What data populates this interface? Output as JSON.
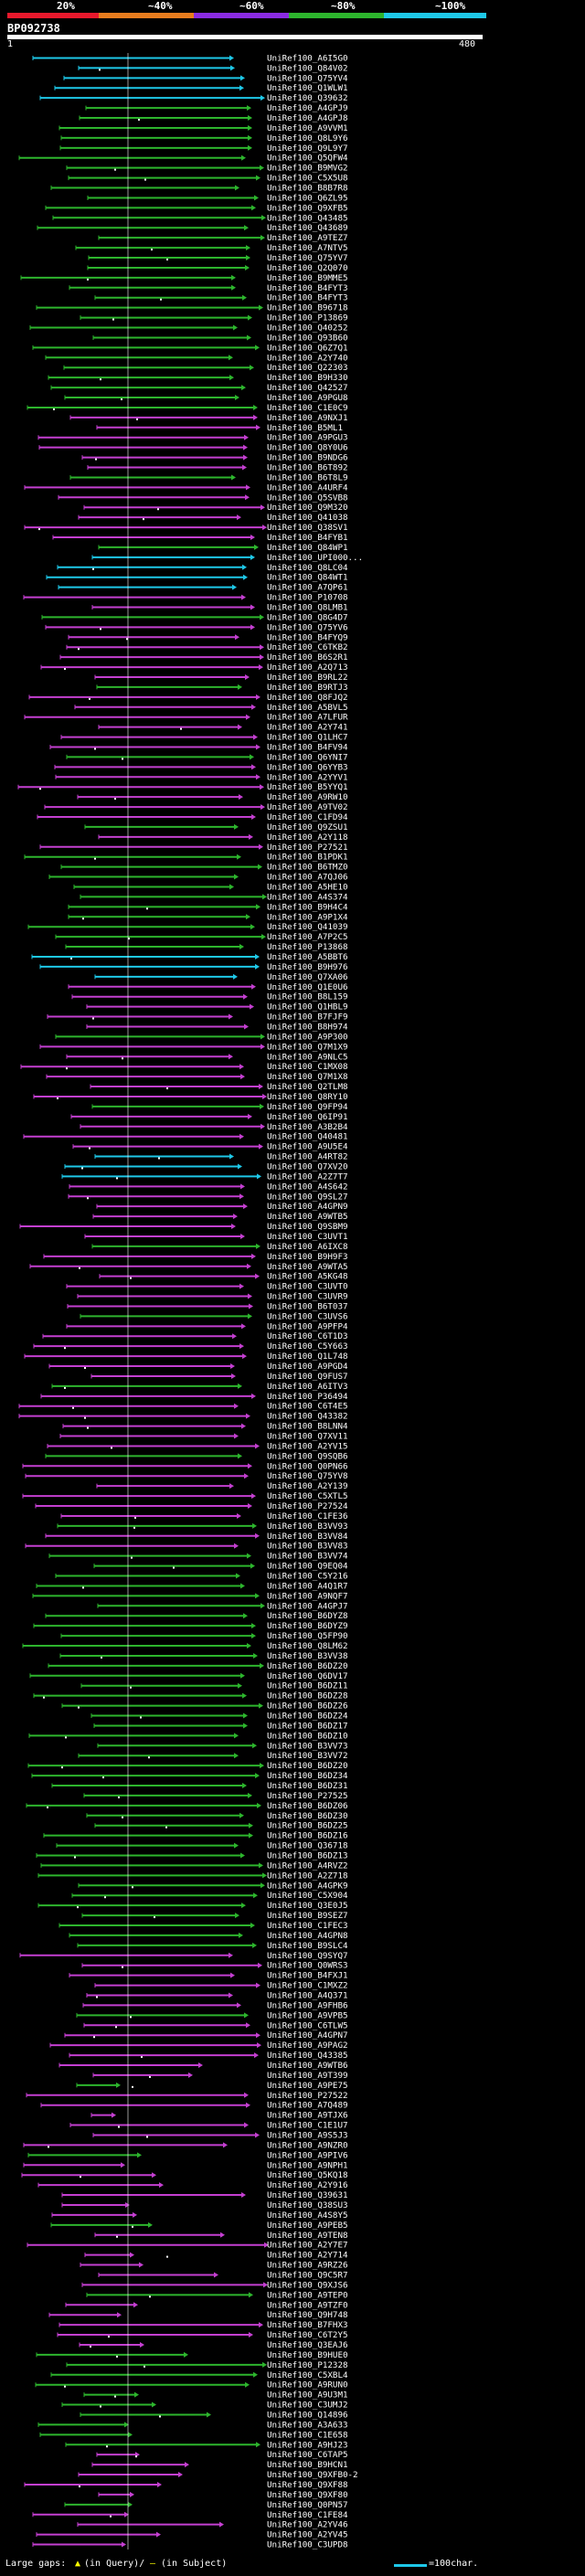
{
  "header": {
    "query_id": "BP092738",
    "ruler_labels": [
      "20%",
      "~40%",
      "~60%",
      "~80%",
      "~100%"
    ],
    "query_start": "1",
    "query_end": "480",
    "colors": [
      "#e8192c",
      "#e87d1e",
      "#8a2be2",
      "#2db52d",
      "#1ec8e8"
    ]
  },
  "legend": {
    "left_text": "Large gaps:",
    "mid_text": "(in Query)/",
    "right_text": "(in Subject)",
    "scale_text": "=100char."
  },
  "hits": [
    "UniRef100_A6I5G0",
    "UniRef100_Q84V02",
    "UniRef100_Q75YV4",
    "UniRef100_Q1WLW1",
    "UniRef100_Q39632",
    "UniRef100_A4GPJ9",
    "UniRef100_A4GPJ8",
    "UniRef100_A9VVM1",
    "UniRef100_Q8L9Y6",
    "UniRef100_Q9L9Y7",
    "UniRef100_Q5QFW4",
    "UniRef100_B9MVG2",
    "UniRef100_C5X5U8",
    "UniRef100_B8B7R8",
    "UniRef100_Q6ZL95",
    "UniRef100_Q9XFB5",
    "UniRef100_Q43485",
    "UniRef100_Q43689",
    "UniRef100_A9TEZ7",
    "UniRef100_A7NTV5",
    "UniRef100_Q75YV7",
    "UniRef100_Q2Q070",
    "UniRef100_B9MME5",
    "UniRef100_B4FYT3",
    "UniRef100_B4FYT3",
    "UniRef100_B96718",
    "UniRef100_P13869",
    "UniRef100_Q40252",
    "UniRef100_Q93B60",
    "UniRef100_Q6Z7Q1",
    "UniRef100_A2Y740",
    "UniRef100_Q22303",
    "UniRef100_B9H330",
    "UniRef100_Q42527",
    "UniRef100_A9PGU8",
    "UniRef100_C1E0C9",
    "UniRef100_A9NXJ1",
    "UniRef100_B5ML1",
    "UniRef100_A9PGU3",
    "UniRef100_Q8Y0U6",
    "UniRef100_B9NDG6",
    "UniRef100_B6T892",
    "UniRef100_B6T8L9",
    "UniRef100_A4URF4",
    "UniRef100_Q5SVB8",
    "UniRef100_Q9M320",
    "UniRef100_Q41038",
    "UniRef100_Q38SV1",
    "UniRef100_B4FYB1",
    "UniRef100_Q84WP1",
    "UniRef100_UPI000...",
    "UniRef100_Q8LC04",
    "UniRef100_Q84WT1",
    "UniRef100_A7QP61",
    "UniRef100_P10708",
    "UniRef100_Q8LMB1",
    "UniRef100_Q8G4D7",
    "UniRef100_Q75YV6",
    "UniRef100_B4FYQ9",
    "UniRef100_C6TKB2",
    "UniRef100_B6S2R1",
    "UniRef100_A2Q713",
    "UniRef100_B9RL22",
    "UniRef100_B9RTJ3",
    "UniRef100_Q8FJQ2",
    "UniRef100_A5BVL5",
    "UniRef100_A7LFUR",
    "UniRef100_A2Y741",
    "UniRef100_Q1LHC7",
    "UniRef100_B4FV94",
    "UniRef100_Q6YNI7",
    "UniRef100_Q6YYB3",
    "UniRef100_A2YYV1",
    "UniRef100_B5YYQ1",
    "UniRef100_A9RW10",
    "UniRef100_A9TV02",
    "UniRef100_C1FD94",
    "UniRef100_Q9ZSU1",
    "UniRef100_A2Y118",
    "UniRef100_P27521",
    "UniRef100_B1PDK1",
    "UniRef100_B6TMZ0",
    "UniRef100_A7QJ06",
    "UniRef100_A5HE10",
    "UniRef100_A4S374",
    "UniRef100_B9H4C4",
    "UniRef100_A9P1X4",
    "UniRef100_Q41039",
    "UniRef100_A7P2C5",
    "UniRef100_P13868",
    "UniRef100_A5BBT6",
    "UniRef100_B9H976",
    "UniRef100_Q7XA06",
    "UniRef100_Q1E0U6",
    "UniRef100_B8L159",
    "UniRef100_Q1HBL9",
    "UniRef100_B7FJF9",
    "UniRef100_B8H974",
    "UniRef100_A9P300",
    "UniRef100_Q7M1X9",
    "UniRef100_A9NLC5",
    "UniRef100_C1MX08",
    "UniRef100_Q7M1X8",
    "UniRef100_Q2TLM8",
    "UniRef100_Q8RY10",
    "UniRef100_Q9FP94",
    "UniRef100_Q6IP91",
    "UniRef100_A3B2B4",
    "UniRef100_Q40481",
    "UniRef100_A9U5E4",
    "UniRef100_A4RT82",
    "UniRef100_Q7XV20",
    "UniRef100_A2Z7T7",
    "UniRef100_A4S642",
    "UniRef100_Q9SL27",
    "UniRef100_A4GPN9",
    "UniRef100_A9WTB5",
    "UniRef100_Q9SBM9",
    "UniRef100_C3UVT1",
    "UniRef100_A6IXC8",
    "UniRef100_B9H9F3",
    "UniRef100_A9WTA5",
    "UniRef100_A5KG48",
    "UniRef100_C3UVT0",
    "UniRef100_C3UVR9",
    "UniRef100_B6T037",
    "UniRef100_C3UVS6",
    "UniRef100_A9PFP4",
    "UniRef100_C6T1D3",
    "UniRef100_C5Y663",
    "UniRef100_Q1L748",
    "UniRef100_A9PGD4",
    "UniRef100_Q9FUS7",
    "UniRef100_A6ITV3",
    "UniRef100_P36494",
    "UniRef100_C6T4E5",
    "UniRef100_Q43382",
    "UniRef100_B8LNN4",
    "UniRef100_Q7XV11",
    "UniRef100_A2YV15",
    "UniRef100_Q9SQB6",
    "UniRef100_Q0PN66",
    "UniRef100_Q75YV8",
    "UniRef100_A2Y139",
    "UniRef100_C5XTL5",
    "UniRef100_P27524",
    "UniRef100_C1FE36",
    "UniRef100_B3VV93",
    "UniRef100_B3VV84",
    "UniRef100_B3VV83",
    "UniRef100_B3VV74",
    "UniRef100_Q9EQ04",
    "UniRef100_C5Y216",
    "UniRef100_A4Q1R7",
    "UniRef100_A9NQF7",
    "UniRef100_A4GPJ7",
    "UniRef100_B6DYZ8",
    "UniRef100_B6DYZ9",
    "UniRef100_Q5FP90",
    "UniRef100_Q8LM62",
    "UniRef100_B3VV38",
    "UniRef100_B6DZ20",
    "UniRef100_Q6DV17",
    "UniRef100_B6DZ11",
    "UniRef100_B6DZ28",
    "UniRef100_B6DZ26",
    "UniRef100_B6DZ24",
    "UniRef100_B6DZ17",
    "UniRef100_B6DZ10",
    "UniRef100_B3VV73",
    "UniRef100_B3VV72",
    "UniRef100_B6DZ20",
    "UniRef100_B6DZ34",
    "UniRef100_B6DZ31",
    "UniRef100_P27525",
    "UniRef100_B6DZ06",
    "UniRef100_B6DZ30",
    "UniRef100_B6DZ25",
    "UniRef100_B6DZ16",
    "UniRef100_Q36718",
    "UniRef100_B6DZ13",
    "UniRef100_A4RVZ2",
    "UniRef100_A2Z718",
    "UniRef100_A4GPK9",
    "UniRef100_C5X904",
    "UniRef100_Q3E0J5",
    "UniRef100_B9SEZ7",
    "UniRef100_C1FEC3",
    "UniRef100_A4GPN8",
    "UniRef100_B9SLC4",
    "UniRef100_Q9SYQ7",
    "UniRef100_Q0WRS3",
    "UniRef100_B4FXJ1",
    "UniRef100_C1MXZ2",
    "UniRef100_A4Q371",
    "UniRef100_A9FHB6",
    "UniRef100_A9VPB5",
    "UniRef100_C6TLW5",
    "UniRef100_A4GPN7",
    "UniRef100_A9PAG2",
    "UniRef100_Q43385",
    "UniRef100_A9WTB6",
    "UniRef100_A9T399",
    "UniRef100_A9PE75",
    "UniRef100_P27522",
    "UniRef100_A7Q489",
    "UniRef100_A9TJX6",
    "UniRef100_C1E1U7",
    "UniRef100_A9S5J3",
    "UniRef100_A9NZR0",
    "UniRef100_A9PIV6",
    "UniRef100_A9NPH1",
    "UniRef100_Q5KQ18",
    "UniRef100_A2Y916",
    "UniRef100_Q39631",
    "UniRef100_Q38SU3",
    "UniRef100_A4S8Y5",
    "UniRef100_A9PEB5",
    "UniRef100_A9TEN8",
    "UniRef100_A2Y7E7",
    "UniRef100_A2Y714",
    "UniRef100_A9RZ26",
    "UniRef100_Q9C5R7",
    "UniRef100_Q9XJS6",
    "UniRef100_A9TEP0",
    "UniRef100_A9TZF0",
    "UniRef100_Q9H748",
    "UniRef100_B7FHX3",
    "UniRef100_C6T2Y5",
    "UniRef100_Q3EAJ6",
    "UniRef100_B9HUE0",
    "UniRef100_P12328",
    "UniRef100_C5XBL4",
    "UniRef100_A9RUN0",
    "UniRef100_A9U3M1",
    "UniRef100_C3UMJ2",
    "UniRef100_Q14896",
    "UniRef100_A3A633",
    "UniRef100_C1E658",
    "UniRef100_A9HJ23",
    "UniRef100_C6TAP5",
    "UniRef100_B9HCN1",
    "UniRef100_Q9XFB0-2",
    "UniRef100_Q9XF88",
    "UniRef100_Q9XF80",
    "UniRef100_Q0PN57",
    "UniRef100_C1FE84",
    "UniRef100_A2YV46",
    "UniRef100_A2YV45",
    "UniRef100_C3UPD8"
  ]
}
